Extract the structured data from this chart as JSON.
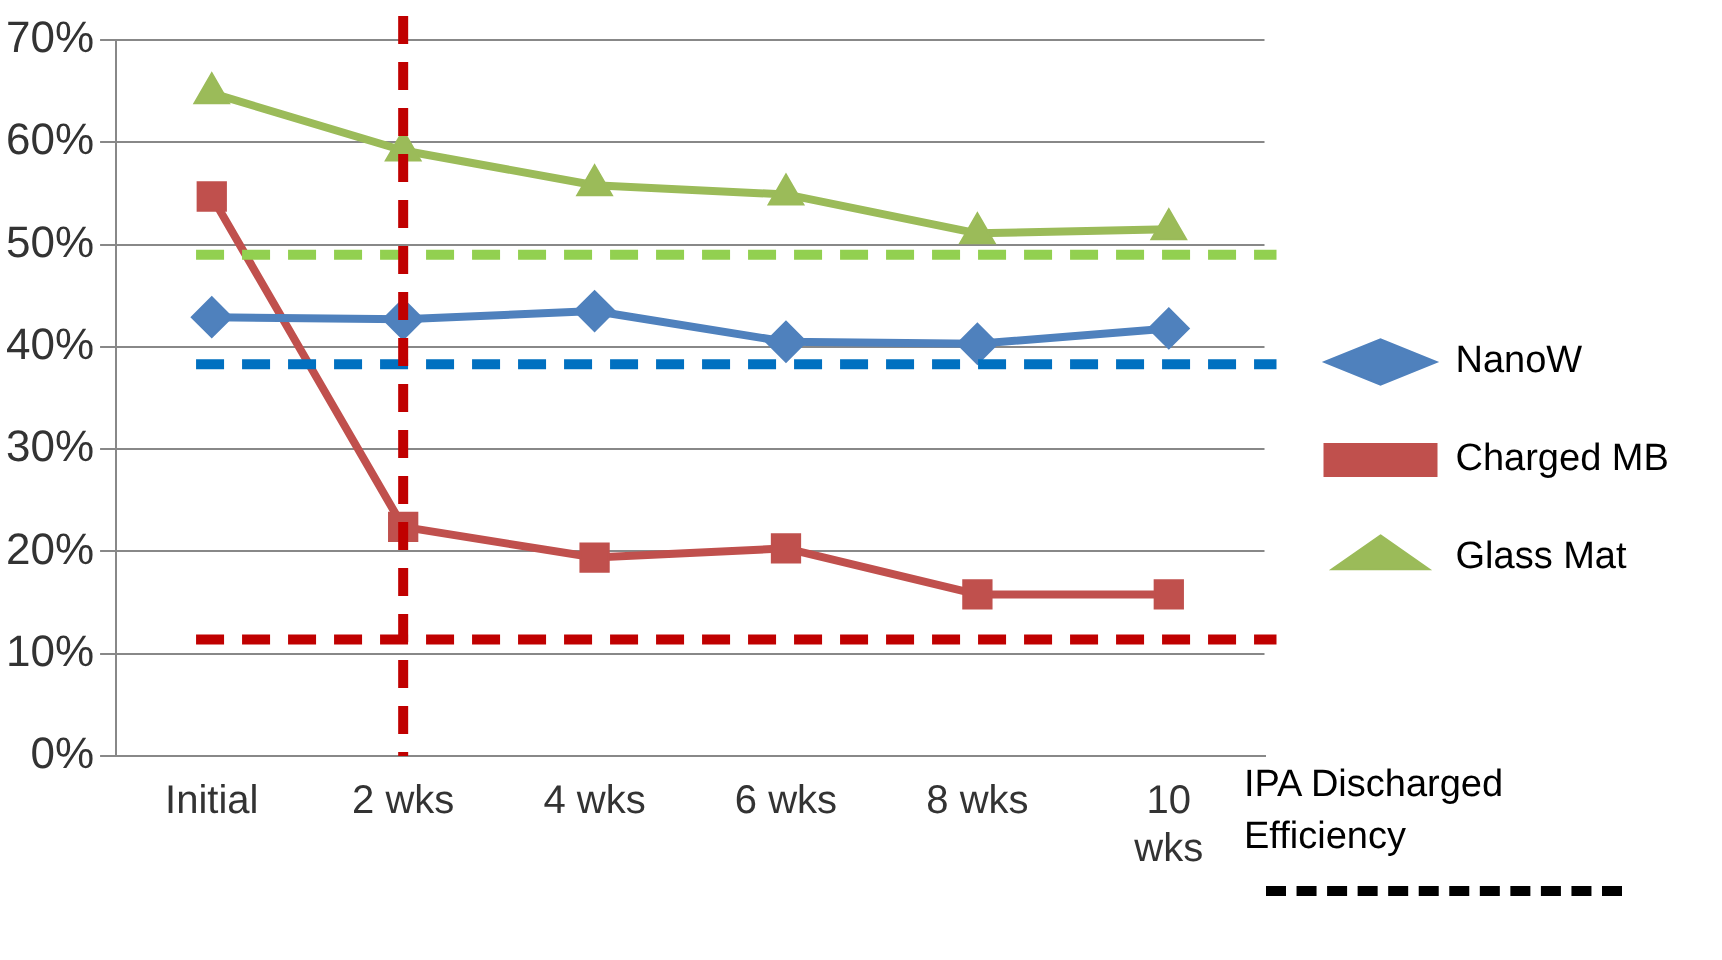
{
  "chart_data": {
    "type": "line",
    "categories": [
      "Initial",
      "2 wks",
      "4 wks",
      "6 wks",
      "8 wks",
      "10 wks"
    ],
    "series": [
      {
        "name": "NanoW",
        "color": "#4f81bd",
        "marker": "diamond",
        "values": [
          42.9,
          42.7,
          43.5,
          40.5,
          40.3,
          41.8
        ]
      },
      {
        "name": "Charged MB",
        "color": "#c0504d",
        "marker": "square",
        "values": [
          54.7,
          22.4,
          19.4,
          20.3,
          15.8,
          15.8
        ]
      },
      {
        "name": "Glass Mat",
        "color": "#9bbb59",
        "marker": "triangle",
        "values": [
          64.8,
          59.2,
          55.8,
          54.9,
          51.1,
          51.5
        ]
      }
    ],
    "ylim": [
      0,
      70
    ],
    "yticks": [
      {
        "value": 0,
        "label": "0%"
      },
      {
        "value": 10,
        "label": "10%"
      },
      {
        "value": 20,
        "label": "20%"
      },
      {
        "value": 30,
        "label": "30%"
      },
      {
        "value": 40,
        "label": "40%"
      },
      {
        "value": 50,
        "label": "50%"
      },
      {
        "value": 60,
        "label": "60%"
      },
      {
        "value": 70,
        "label": "70%"
      }
    ],
    "grid": "y",
    "legend": "right",
    "line_style": "solid",
    "ref_lines": [
      {
        "axis": "y",
        "value": 49,
        "color": "#92d050",
        "line_style": "dashed"
      },
      {
        "axis": "y",
        "value": 38.3,
        "color": "#0070c0",
        "line_style": "dashed"
      },
      {
        "axis": "y",
        "value": 11.4,
        "color": "#c00000",
        "line_style": "dashed"
      },
      {
        "axis": "x",
        "value": "2 wks",
        "color": "#c00000",
        "line_style": "dashed"
      }
    ],
    "annotations": [
      "IPA Discharged Efficiency"
    ]
  }
}
